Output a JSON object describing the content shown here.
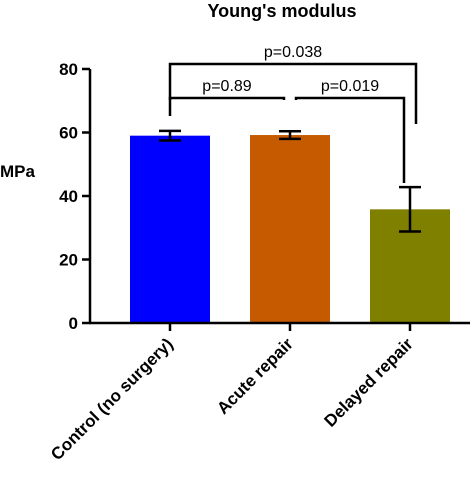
{
  "chart_data": {
    "type": "bar",
    "title": "Young's modulus",
    "ylabel": "MPa",
    "xlabel": "",
    "ylim": [
      0,
      80
    ],
    "yticks": [
      0,
      20,
      40,
      60,
      80
    ],
    "categories": [
      "Control (no surgery)",
      "Acute repair",
      "Delayed repair"
    ],
    "values": [
      59,
      59.2,
      35.8
    ],
    "errors": [
      1.5,
      1.2,
      7.0
    ],
    "colors": [
      "#0000ff",
      "#c55a00",
      "#808000"
    ],
    "grid": false,
    "annotations": [
      {
        "text": "p=0.038",
        "from": 0,
        "to": 2
      },
      {
        "text": "p=0.89",
        "from": 0,
        "to": 1
      },
      {
        "text": "p=0.019",
        "from": 1,
        "to": 2
      }
    ]
  }
}
